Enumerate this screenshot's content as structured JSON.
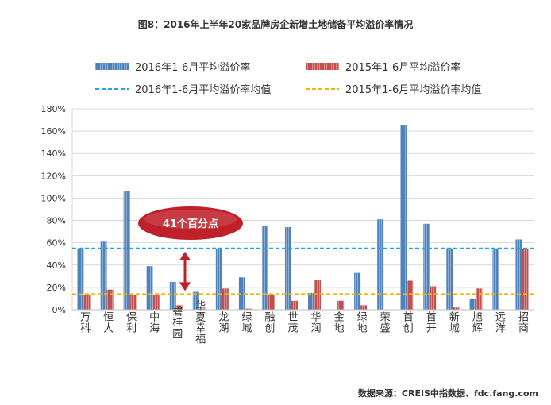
{
  "title": "图8：2016年上半年20家品牌房企新增土地储备平均溢价率情况",
  "source": "数据来源：CREIS中指数据、fdc.fang.com",
  "annotation": "41个百分点",
  "colors": {
    "bar2016": "#4F81BD",
    "bar2015": "#C0504D",
    "avg2016": "#1FA8E0",
    "avg2015": "#F5B400",
    "grid": "#D9D9D9",
    "annotation": "#C0202A"
  },
  "chart_data": {
    "type": "bar",
    "title": "图8：2016年上半年20家品牌房企新增土地储备平均溢价率情况",
    "categories": [
      "万科",
      "恒大",
      "保利",
      "中海",
      "碧桂园",
      "华夏幸福",
      "龙湖",
      "绿城",
      "融创",
      "世茂",
      "华润",
      "金地",
      "绿地",
      "荣盛",
      "首创",
      "首开",
      "新城",
      "旭辉",
      "远洋",
      "招商"
    ],
    "series": [
      {
        "name": "2016年1-6月平均溢价率",
        "values": [
          55,
          61,
          106,
          39,
          25,
          16,
          55,
          29,
          75,
          74,
          15,
          0,
          33,
          81,
          165,
          77,
          55,
          10,
          55,
          63
        ]
      },
      {
        "name": "2015年1-6月平均溢价率",
        "values": [
          13,
          18,
          13,
          13,
          4,
          1,
          19,
          1,
          13,
          8,
          27,
          8,
          4,
          0,
          26,
          21,
          2,
          19,
          0,
          55
        ]
      }
    ],
    "reference_lines": [
      {
        "name": "2016年1-6月平均溢价率均值",
        "value": 55
      },
      {
        "name": "2015年1-6月平均溢价率均值",
        "value": 14
      }
    ],
    "ylim": [
      0,
      180
    ],
    "y_ticks": [
      "0%",
      "20%",
      "40%",
      "60%",
      "80%",
      "100%",
      "120%",
      "140%",
      "160%",
      "180%"
    ],
    "grid": true,
    "legend_position": "top"
  }
}
